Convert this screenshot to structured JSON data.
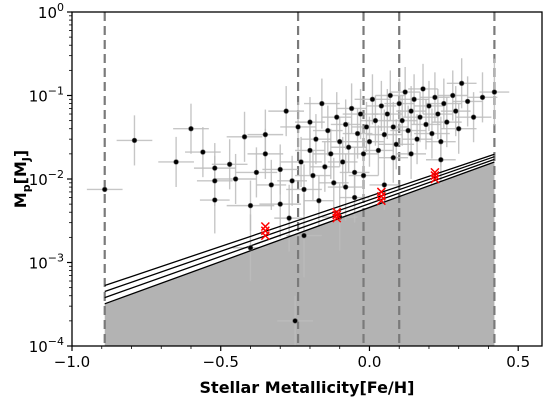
{
  "chart_data": {
    "type": "scatter",
    "title": "",
    "xlabel": "Stellar Metallicity[Fe/H]",
    "ylabel": {
      "main": "M",
      "sub1": "p",
      "mid": "[M",
      "sub2": "J",
      "end": "]"
    },
    "xlim": [
      -1.0,
      0.58
    ],
    "ylim": [
      0.0001,
      1
    ],
    "yscale": "log",
    "grid": false,
    "legend": "none",
    "x_ticks": [
      {
        "value": -1.0,
        "label": "−1.0"
      },
      {
        "value": -0.5,
        "label": "−0.5"
      },
      {
        "value": 0.0,
        "label": "0.0"
      },
      {
        "value": 0.5,
        "label": "0.5"
      }
    ],
    "y_ticks": [
      {
        "value": 0.0001,
        "base": "10",
        "exp": "−4"
      },
      {
        "value": 0.001,
        "base": "10",
        "exp": "−3"
      },
      {
        "value": 0.01,
        "base": "10",
        "exp": "−2"
      },
      {
        "value": 0.1,
        "base": "10",
        "exp": "−1"
      },
      {
        "value": 1,
        "base": "10",
        "exp": "0"
      }
    ],
    "vertical_lines_x": [
      -0.89,
      -0.24,
      -0.02,
      0.1,
      0.42
    ],
    "limit_lines": [
      {
        "x": [
          -0.89,
          0.42
        ],
        "y": [
          0.00032,
          0.016
        ]
      },
      {
        "x": [
          -0.89,
          0.42
        ],
        "y": [
          0.00038,
          0.0172
        ]
      },
      {
        "x": [
          -0.89,
          0.42
        ],
        "y": [
          0.00045,
          0.0185
        ]
      },
      {
        "x": [
          -0.89,
          0.42
        ],
        "y": [
          0.00053,
          0.0198
        ]
      }
    ],
    "shaded_region": {
      "x": [
        -0.89,
        0.42
      ],
      "y_upper": [
        0.00032,
        0.016
      ]
    },
    "colors": {
      "points": "#000000",
      "errorbars": "#bdbdbd",
      "shade": "#b3b3b3",
      "vlines": "#7a7a7a",
      "flagged": "#ff0000"
    },
    "planets": [
      {
        "x": -0.52,
        "y": 0.0095,
        "xerr": 0.06,
        "yerr": 0.3
      },
      {
        "x": -0.52,
        "y": 0.0135,
        "xerr": 0.07,
        "yerr": 0.3
      },
      {
        "x": -0.52,
        "y": 0.0056,
        "xerr": 0.05,
        "yerr": 0.4
      },
      {
        "x": -0.47,
        "y": 0.015,
        "xerr": 0.06,
        "yerr": 0.3
      },
      {
        "x": -0.45,
        "y": 0.01,
        "xerr": 0.07,
        "yerr": 0.3
      },
      {
        "x": -0.42,
        "y": 0.032,
        "xerr": 0.06,
        "yerr": 0.3
      },
      {
        "x": -0.4,
        "y": 0.0048,
        "xerr": 0.08,
        "yerr": 0.3
      },
      {
        "x": -0.38,
        "y": 0.012,
        "xerr": 0.07,
        "yerr": 0.3
      },
      {
        "x": -0.35,
        "y": 0.02,
        "xerr": 0.06,
        "yerr": 0.3
      },
      {
        "x": -0.33,
        "y": 0.0085,
        "xerr": 0.05,
        "yerr": 0.3
      },
      {
        "x": -0.3,
        "y": 0.013,
        "xerr": 0.06,
        "yerr": 0.3
      },
      {
        "x": -0.28,
        "y": 0.065,
        "xerr": 0.06,
        "yerr": 0.3
      },
      {
        "x": -0.26,
        "y": 0.0095,
        "xerr": 0.05,
        "yerr": 0.3
      },
      {
        "x": -0.24,
        "y": 0.042,
        "xerr": 0.06,
        "yerr": 0.3
      },
      {
        "x": -0.23,
        "y": 0.016,
        "xerr": 0.07,
        "yerr": 0.3
      },
      {
        "x": -0.22,
        "y": 0.0075,
        "xerr": 0.06,
        "yerr": 0.3
      },
      {
        "x": -0.2,
        "y": 0.022,
        "xerr": 0.05,
        "yerr": 0.3
      },
      {
        "x": -0.19,
        "y": 0.011,
        "xerr": 0.06,
        "yerr": 0.3
      },
      {
        "x": -0.18,
        "y": 0.03,
        "xerr": 0.05,
        "yerr": 0.3
      },
      {
        "x": -0.17,
        "y": 0.0055,
        "xerr": 0.05,
        "yerr": 0.3
      },
      {
        "x": -0.16,
        "y": 0.08,
        "xerr": 0.06,
        "yerr": 0.3
      },
      {
        "x": -0.15,
        "y": 0.014,
        "xerr": 0.05,
        "yerr": 0.3
      },
      {
        "x": -0.14,
        "y": 0.038,
        "xerr": 0.05,
        "yerr": 0.3
      },
      {
        "x": -0.13,
        "y": 0.02,
        "xerr": 0.06,
        "yerr": 0.3
      },
      {
        "x": -0.12,
        "y": 0.009,
        "xerr": 0.05,
        "yerr": 0.3
      },
      {
        "x": -0.11,
        "y": 0.055,
        "xerr": 0.05,
        "yerr": 0.3
      },
      {
        "x": -0.1,
        "y": 0.028,
        "xerr": 0.06,
        "yerr": 0.3
      },
      {
        "x": -0.09,
        "y": 0.016,
        "xerr": 0.05,
        "yerr": 0.3
      },
      {
        "x": -0.08,
        "y": 0.045,
        "xerr": 0.05,
        "yerr": 0.3
      },
      {
        "x": -0.07,
        "y": 0.024,
        "xerr": 0.06,
        "yerr": 0.3
      },
      {
        "x": -0.06,
        "y": 0.07,
        "xerr": 0.05,
        "yerr": 0.3
      },
      {
        "x": -0.05,
        "y": 0.012,
        "xerr": 0.05,
        "yerr": 0.3
      },
      {
        "x": -0.04,
        "y": 0.035,
        "xerr": 0.05,
        "yerr": 0.3
      },
      {
        "x": -0.03,
        "y": 0.06,
        "xerr": 0.06,
        "yerr": 0.3
      },
      {
        "x": -0.02,
        "y": 0.02,
        "xerr": 0.05,
        "yerr": 0.3
      },
      {
        "x": -0.01,
        "y": 0.042,
        "xerr": 0.05,
        "yerr": 0.3
      },
      {
        "x": 0.0,
        "y": 0.028,
        "xerr": 0.05,
        "yerr": 0.3
      },
      {
        "x": 0.01,
        "y": 0.09,
        "xerr": 0.06,
        "yerr": 0.3
      },
      {
        "x": 0.02,
        "y": 0.05,
        "xerr": 0.05,
        "yerr": 0.3
      },
      {
        "x": 0.03,
        "y": 0.022,
        "xerr": 0.05,
        "yerr": 0.3
      },
      {
        "x": 0.04,
        "y": 0.075,
        "xerr": 0.05,
        "yerr": 0.3
      },
      {
        "x": 0.05,
        "y": 0.034,
        "xerr": 0.06,
        "yerr": 0.3
      },
      {
        "x": 0.06,
        "y": 0.06,
        "xerr": 0.05,
        "yerr": 0.3
      },
      {
        "x": 0.07,
        "y": 0.1,
        "xerr": 0.05,
        "yerr": 0.3
      },
      {
        "x": 0.08,
        "y": 0.042,
        "xerr": 0.05,
        "yerr": 0.3
      },
      {
        "x": 0.09,
        "y": 0.026,
        "xerr": 0.06,
        "yerr": 0.3
      },
      {
        "x": 0.1,
        "y": 0.08,
        "xerr": 0.05,
        "yerr": 0.3
      },
      {
        "x": 0.11,
        "y": 0.05,
        "xerr": 0.05,
        "yerr": 0.3
      },
      {
        "x": 0.12,
        "y": 0.11,
        "xerr": 0.05,
        "yerr": 0.3
      },
      {
        "x": 0.13,
        "y": 0.038,
        "xerr": 0.06,
        "yerr": 0.3
      },
      {
        "x": 0.14,
        "y": 0.065,
        "xerr": 0.05,
        "yerr": 0.3
      },
      {
        "x": 0.15,
        "y": 0.09,
        "xerr": 0.05,
        "yerr": 0.3
      },
      {
        "x": 0.16,
        "y": 0.03,
        "xerr": 0.05,
        "yerr": 0.3
      },
      {
        "x": 0.17,
        "y": 0.055,
        "xerr": 0.06,
        "yerr": 0.3
      },
      {
        "x": 0.18,
        "y": 0.12,
        "xerr": 0.05,
        "yerr": 0.3
      },
      {
        "x": 0.19,
        "y": 0.045,
        "xerr": 0.05,
        "yerr": 0.3
      },
      {
        "x": 0.2,
        "y": 0.075,
        "xerr": 0.05,
        "yerr": 0.3
      },
      {
        "x": 0.21,
        "y": 0.035,
        "xerr": 0.06,
        "yerr": 0.3
      },
      {
        "x": 0.22,
        "y": 0.095,
        "xerr": 0.05,
        "yerr": 0.3
      },
      {
        "x": 0.23,
        "y": 0.06,
        "xerr": 0.05,
        "yerr": 0.3
      },
      {
        "x": 0.24,
        "y": 0.028,
        "xerr": 0.05,
        "yerr": 0.3
      },
      {
        "x": 0.25,
        "y": 0.08,
        "xerr": 0.06,
        "yerr": 0.3
      },
      {
        "x": 0.26,
        "y": 0.048,
        "xerr": 0.05,
        "yerr": 0.3
      },
      {
        "x": 0.28,
        "y": 0.1,
        "xerr": 0.05,
        "yerr": 0.3
      },
      {
        "x": 0.29,
        "y": 0.065,
        "xerr": 0.05,
        "yerr": 0.3
      },
      {
        "x": 0.3,
        "y": 0.04,
        "xerr": 0.06,
        "yerr": 0.3
      },
      {
        "x": 0.31,
        "y": 0.14,
        "xerr": 0.05,
        "yerr": 0.3
      },
      {
        "x": 0.33,
        "y": 0.085,
        "xerr": 0.05,
        "yerr": 0.3
      },
      {
        "x": 0.35,
        "y": 0.055,
        "xerr": 0.06,
        "yerr": 0.3
      },
      {
        "x": 0.38,
        "y": 0.095,
        "xerr": 0.05,
        "yerr": 0.3
      },
      {
        "x": 0.42,
        "y": 0.11,
        "xerr": 0.05,
        "yerr": 0.4
      },
      {
        "x": -0.79,
        "y": 0.029,
        "xerr": 0.06,
        "yerr": 0.3
      },
      {
        "x": -0.6,
        "y": 0.04,
        "xerr": 0.06,
        "yerr": 0.3
      },
      {
        "x": -0.56,
        "y": 0.021,
        "xerr": 0.06,
        "yerr": 0.3
      },
      {
        "x": -0.4,
        "y": 0.0015,
        "xerr": 0.06,
        "yerr": 0.4
      },
      {
        "x": -0.3,
        "y": 0.005,
        "xerr": 0.07,
        "yerr": 0.4
      },
      {
        "x": -0.27,
        "y": 0.0034,
        "xerr": 0.05,
        "yerr": 0.4
      },
      {
        "x": -0.22,
        "y": 0.0021,
        "xerr": 0.06,
        "yerr": 0.5
      },
      {
        "x": -0.1,
        "y": 0.0035,
        "xerr": 0.06,
        "yerr": 0.4
      },
      {
        "x": -0.25,
        "y": 0.0002,
        "xerr": 0.06,
        "yerr": 0.3
      },
      {
        "x": -0.05,
        "y": 0.006,
        "xerr": 0.05,
        "yerr": 0.3
      },
      {
        "x": 0.05,
        "y": 0.0085,
        "xerr": 0.05,
        "yerr": 0.3
      },
      {
        "x": -0.02,
        "y": 0.011,
        "xerr": 0.05,
        "yerr": 0.3
      },
      {
        "x": -0.35,
        "y": 0.034,
        "xerr": 0.06,
        "yerr": 0.3
      },
      {
        "x": -0.2,
        "y": 0.048,
        "xerr": 0.05,
        "yerr": 0.3
      },
      {
        "x": 0.08,
        "y": 0.018,
        "xerr": 0.05,
        "yerr": 0.3
      },
      {
        "x": 0.14,
        "y": 0.02,
        "xerr": 0.05,
        "yerr": 0.3
      },
      {
        "x": 0.24,
        "y": 0.017,
        "xerr": 0.05,
        "yerr": 0.3
      },
      {
        "x": -0.65,
        "y": 0.016,
        "xerr": 0.06,
        "yerr": 0.3
      },
      {
        "x": -0.08,
        "y": 0.008,
        "xerr": 0.06,
        "yerr": 0.4
      },
      {
        "x": -0.89,
        "y": 0.0075,
        "xerr": 0.06,
        "yerr": 0.0
      }
    ],
    "flagged": [
      {
        "x": -0.35,
        "y": 0.0027
      },
      {
        "x": -0.35,
        "y": 0.0024
      },
      {
        "x": -0.35,
        "y": 0.0021
      },
      {
        "x": -0.11,
        "y": 0.004
      },
      {
        "x": -0.11,
        "y": 0.0037
      },
      {
        "x": -0.11,
        "y": 0.0034
      },
      {
        "x": 0.04,
        "y": 0.007
      },
      {
        "x": 0.04,
        "y": 0.0062
      },
      {
        "x": 0.04,
        "y": 0.0055
      },
      {
        "x": 0.22,
        "y": 0.012
      },
      {
        "x": 0.22,
        "y": 0.011
      },
      {
        "x": 0.22,
        "y": 0.01
      }
    ]
  }
}
